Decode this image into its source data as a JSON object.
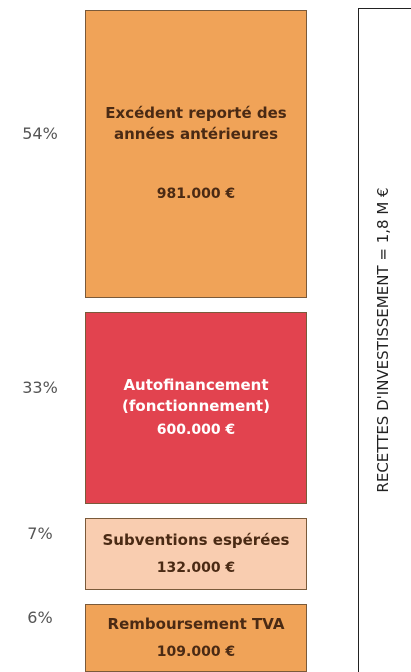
{
  "chart_data": {
    "type": "blocks",
    "title": "RECETTES D'INVESTISSEMENT = 1,8 M €",
    "categories": [
      "Excédent reporté des années antérieures",
      "Autofinancement (fonctionnement)",
      "Subventions espérées",
      "Remboursement TVA"
    ],
    "values": [
      54,
      33,
      7,
      6
    ],
    "value_labels": [
      "54%",
      "33%",
      "7%",
      "6%"
    ],
    "amount_labels": [
      "981.000 €",
      "600.000 €",
      "132.000 €",
      "109.000 €"
    ],
    "colors": [
      "#f0a358",
      "#e2434f",
      "#f9cdb0",
      "#f0a358"
    ],
    "text_colors": [
      "#4a2a14",
      "#ffffff",
      "#4a2a14",
      "#4a2a14"
    ]
  }
}
